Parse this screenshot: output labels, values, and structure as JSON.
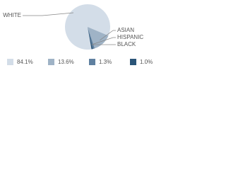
{
  "chart_data": {
    "type": "pie",
    "categories": [
      "WHITE",
      "ASIAN",
      "HISPANIC",
      "BLACK"
    ],
    "values": [
      84.1,
      13.6,
      1.3,
      1.0
    ],
    "value_labels": [
      "84.1%",
      "13.6%",
      "1.3%",
      "1.0%"
    ],
    "colors": [
      "#d3dde8",
      "#9fb3c6",
      "#5f80a0",
      "#2b5578"
    ]
  }
}
